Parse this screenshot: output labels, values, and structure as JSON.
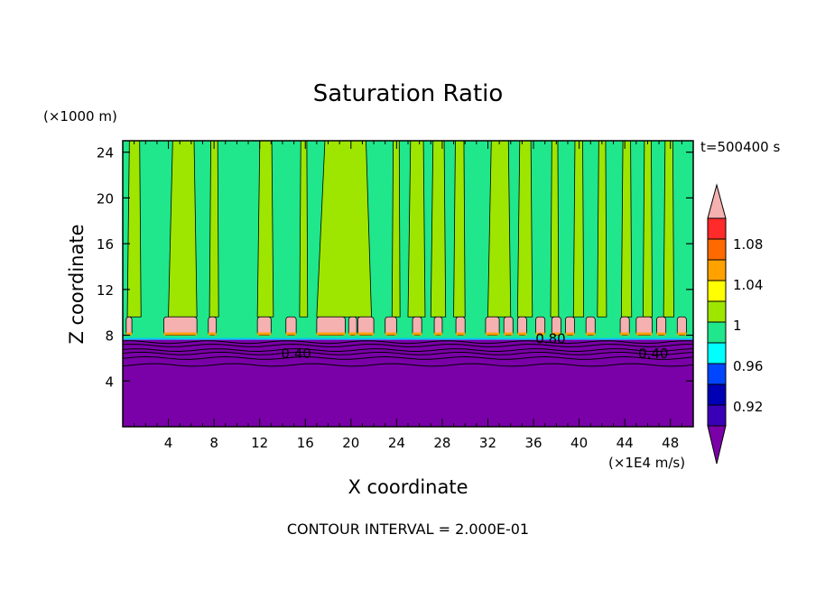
{
  "chart_data": {
    "type": "contour",
    "title": "Saturation Ratio",
    "xlabel": "X coordinate",
    "ylabel": "Z coordinate",
    "x_unit": "(×1E4 m/s)",
    "y_unit": "(×1000 m)",
    "time_label": "t=500400 s",
    "footer": "CONTOUR INTERVAL = 2.000E-01",
    "xlim": [
      0,
      50
    ],
    "ylim": [
      0,
      25
    ],
    "x_ticks": [
      "4",
      "8",
      "12",
      "16",
      "20",
      "24",
      "28",
      "32",
      "36",
      "40",
      "44",
      "48"
    ],
    "y_ticks": [
      "4",
      "8",
      "12",
      "16",
      "20",
      "24"
    ],
    "colorbar": {
      "labels": [
        "0.92",
        "0.96",
        "1",
        "1.04",
        "1.08"
      ],
      "colors": [
        "#7a00a8",
        "#3a00b8",
        "#0000b4",
        "#0046ff",
        "#00ffff",
        "#20e68c",
        "#9ee600",
        "#ffff00",
        "#ffa200",
        "#ff6a00",
        "#ff2a2a",
        "#f5b0b0"
      ]
    },
    "contour_labels": [
      {
        "text": "0.40",
        "x": 15.2,
        "z": 6.4
      },
      {
        "text": "0.40",
        "x": 46.5,
        "z": 6.4
      },
      {
        "text": "0.80",
        "x": 37.5,
        "z": 7.7
      }
    ],
    "regions": {
      "subsaturated_top_z": 7.6,
      "cloud_band_z": [
        8.0,
        9.6
      ],
      "background_value": 0.98,
      "column_value": 1.01,
      "columns_x": [
        [
          0.4,
          1.6
        ],
        [
          4.0,
          6.5
        ],
        [
          7.6,
          8.4
        ],
        [
          11.8,
          13.2
        ],
        [
          15.5,
          16.2
        ],
        [
          17.0,
          21.8
        ],
        [
          23.6,
          24.3
        ],
        [
          25.0,
          26.5
        ],
        [
          27.0,
          28.3
        ],
        [
          29.0,
          30.0
        ],
        [
          32.0,
          34.0
        ],
        [
          34.6,
          35.9
        ],
        [
          37.5,
          38.2
        ],
        [
          39.5,
          40.4
        ],
        [
          41.6,
          42.4
        ],
        [
          43.7,
          44.6
        ],
        [
          45.6,
          46.4
        ],
        [
          47.4,
          48.3
        ]
      ],
      "cloud_cells_x": [
        [
          0.3,
          0.8
        ],
        [
          3.6,
          6.5
        ],
        [
          7.5,
          8.2
        ],
        [
          11.8,
          13.0
        ],
        [
          14.3,
          15.2
        ],
        [
          17.0,
          19.5
        ],
        [
          19.8,
          20.5
        ],
        [
          20.6,
          22.0
        ],
        [
          23.0,
          24.0
        ],
        [
          25.4,
          26.2
        ],
        [
          27.3,
          28.0
        ],
        [
          29.2,
          30.0
        ],
        [
          31.8,
          33.0
        ],
        [
          33.4,
          34.2
        ],
        [
          34.6,
          35.4
        ],
        [
          36.2,
          37.0
        ],
        [
          37.6,
          38.4
        ],
        [
          38.8,
          39.6
        ],
        [
          40.6,
          41.4
        ],
        [
          43.6,
          44.4
        ],
        [
          45.0,
          46.4
        ],
        [
          46.8,
          47.6
        ],
        [
          48.6,
          49.4
        ]
      ]
    }
  }
}
